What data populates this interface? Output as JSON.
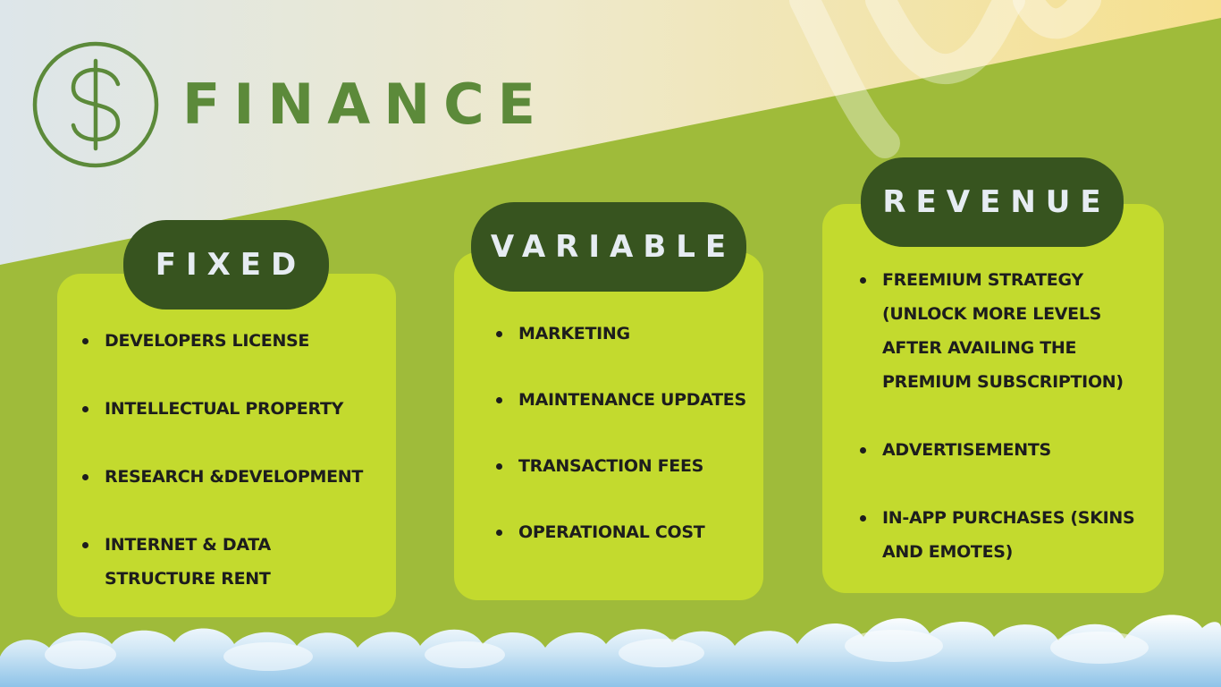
{
  "title": "FINANCE",
  "logo": {
    "icon": "dollar-circle-icon",
    "color": "#5c8a3a"
  },
  "colors": {
    "background_green": "#9fbb3a",
    "card": "#c3da2e",
    "pill": "#37541f",
    "pill_text": "#e6ecf2",
    "title": "#5c8a3a"
  },
  "sections": {
    "fixed": {
      "heading": "FIXED",
      "items": [
        "Developers License",
        "Intellectual Property",
        " Research &Development",
        " Internet & Data structure rent"
      ]
    },
    "variable": {
      "heading": "VARIABLE",
      "items": [
        "Marketing",
        "Maintenance updates",
        "Transaction fees",
        "Operational cost"
      ]
    },
    "revenue": {
      "heading": "REVENUE",
      "items": [
        "Freemium strategy (unlock more levels after availing the premium subscription)",
        "Advertisements",
        "In-App purchases (skins and emotes)"
      ]
    }
  }
}
